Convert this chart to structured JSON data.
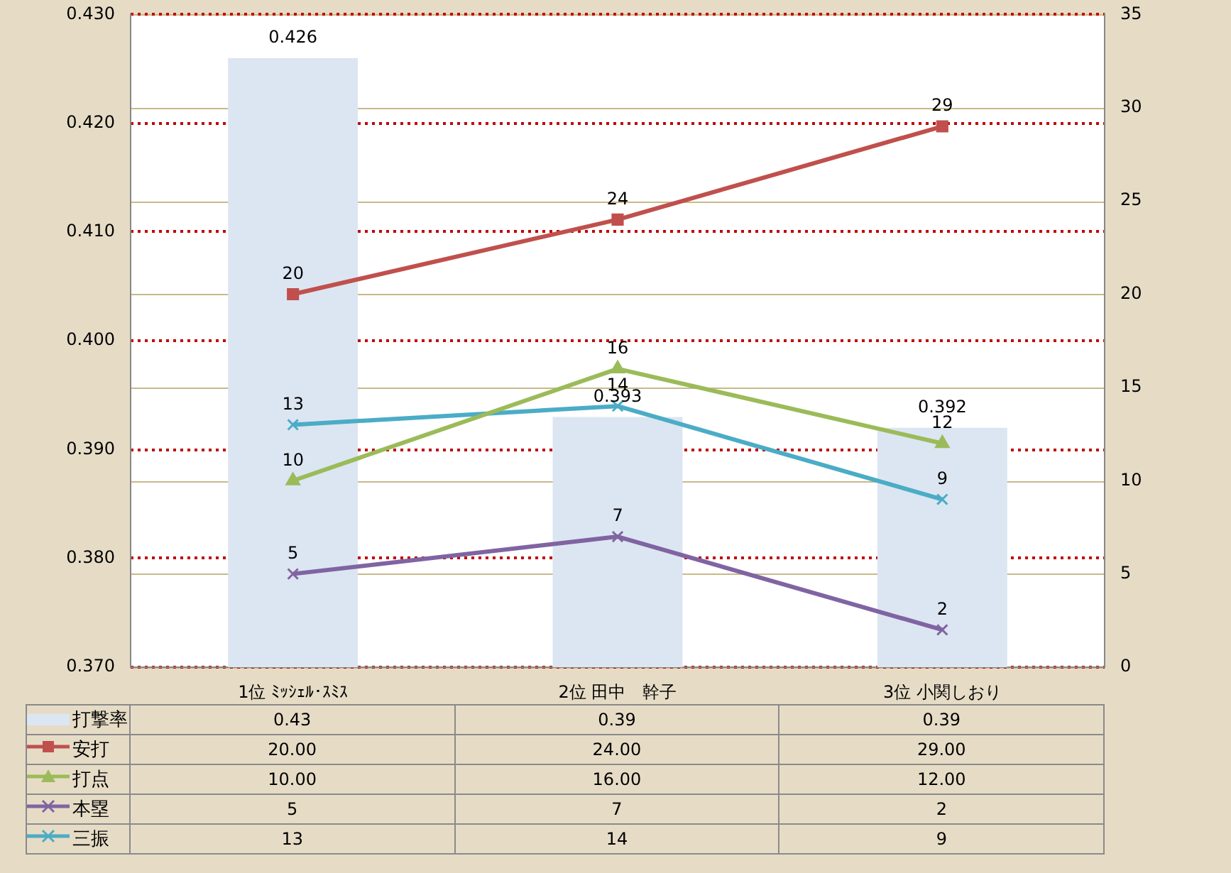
{
  "chart_data": {
    "type": "bar",
    "categories": [
      "1位 ﾐｯｼｪﾙ･ｽﾐｽ",
      "2位 田中　幹子",
      "3位 小関しおり"
    ],
    "series": [
      {
        "name": "打撃率",
        "color": "#dce6f2",
        "values": [
          0.426,
          0.393,
          0.392
        ]
      },
      {
        "name": "安打",
        "type": "line",
        "axis": "y2",
        "marker": "square",
        "color": "#c0504d",
        "values": [
          20,
          24,
          29
        ]
      },
      {
        "name": "打点",
        "type": "line",
        "axis": "y2",
        "marker": "triangle",
        "color": "#9bbb59",
        "values": [
          10,
          16,
          12
        ]
      },
      {
        "name": "本塁",
        "type": "line",
        "axis": "y2",
        "marker": "cross",
        "color": "#8064a2",
        "values": [
          5,
          7,
          2
        ]
      },
      {
        "name": "三振",
        "type": "line",
        "axis": "y2",
        "marker": "cross",
        "color": "#4bacc6",
        "values": [
          13,
          14,
          9
        ]
      }
    ],
    "ylim": [
      0.37,
      0.43
    ],
    "yticks": [
      {
        "value": 0.37,
        "label": "0.370"
      },
      {
        "value": 0.38,
        "label": "0.380"
      },
      {
        "value": 0.39,
        "label": "0.390"
      },
      {
        "value": 0.4,
        "label": "0.400"
      },
      {
        "value": 0.41,
        "label": "0.410"
      },
      {
        "value": 0.42,
        "label": "0.420"
      },
      {
        "value": 0.43,
        "label": "0.430"
      }
    ],
    "y2lim": [
      0,
      35
    ],
    "y2ticks": [
      0,
      5,
      10,
      15,
      20,
      25,
      30,
      35
    ],
    "grid": true,
    "legend": "left",
    "data_labels": true,
    "annotations": [
      "0.43",
      "0.39",
      "0.39",
      "20.00",
      "24.00",
      "29.00",
      "10.00",
      "16.00",
      "12.00",
      "5",
      "7",
      "2",
      "13",
      "14",
      "9"
    ]
  }
}
